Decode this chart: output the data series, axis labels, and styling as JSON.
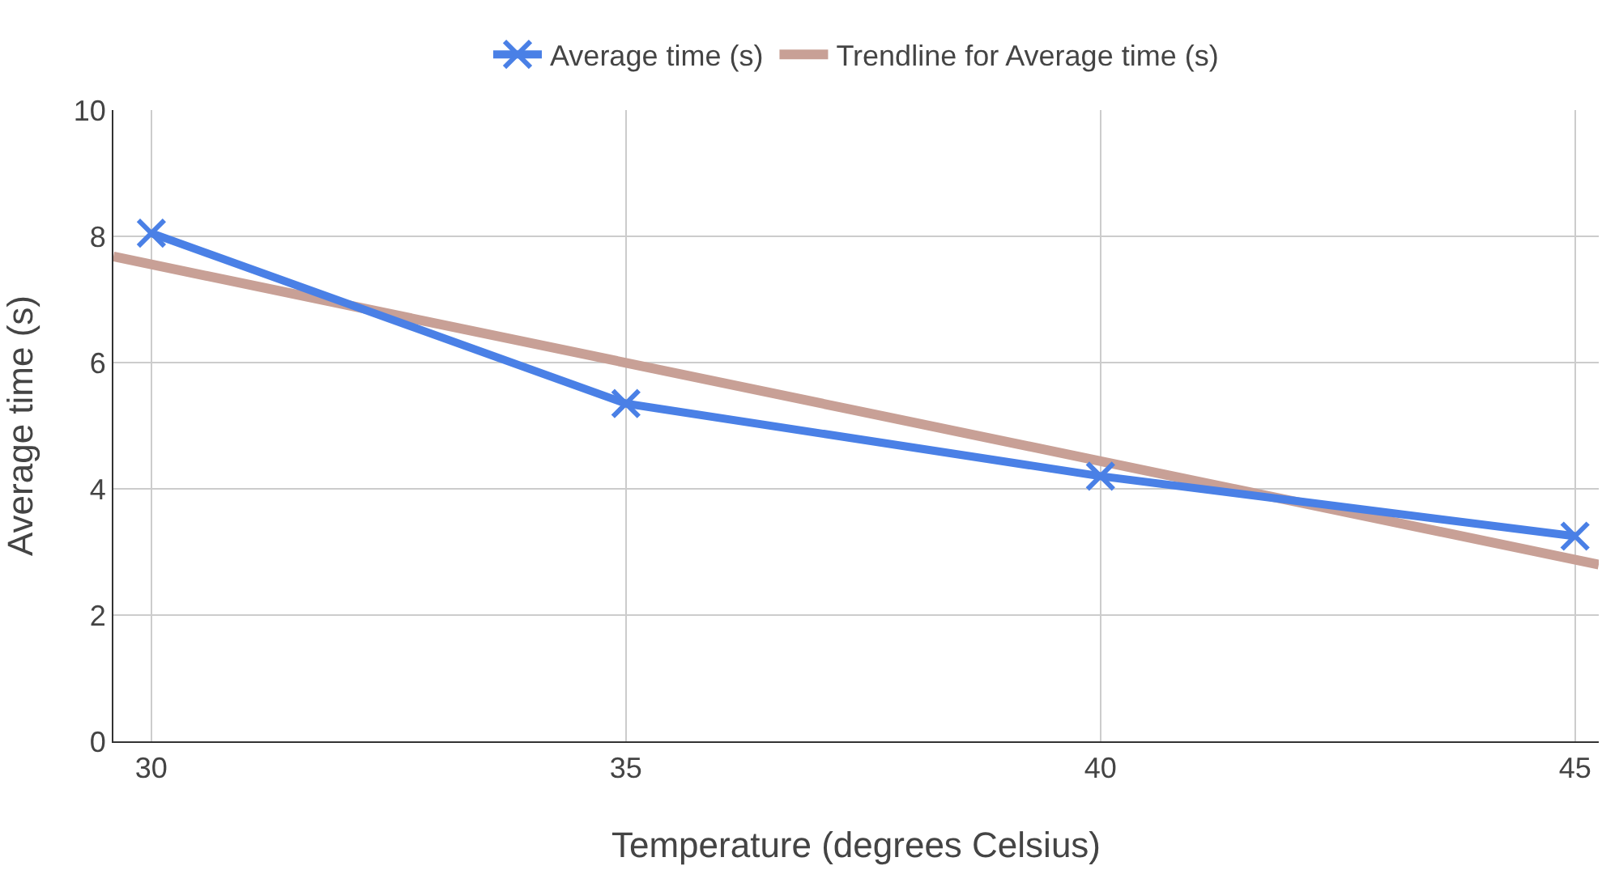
{
  "chart_data": {
    "type": "line",
    "xlabel": "Temperature (degrees Celsius)",
    "ylabel": "Average time (s)",
    "series": [
      {
        "name": "Average time (s)",
        "color": "#4a80e6",
        "x": [
          30,
          35,
          40,
          45
        ],
        "values": [
          8.05,
          5.35,
          4.2,
          3.25
        ],
        "marker": "cross"
      },
      {
        "name": "Trendline for Average time (s)",
        "color": "#c8a096",
        "x": [
          29.6,
          45.25
        ],
        "values": [
          7.68,
          2.8
        ],
        "marker": "none"
      }
    ],
    "xlim": [
      29.6,
      45.25
    ],
    "xticks": [
      30,
      35,
      40,
      45
    ],
    "ylim": [
      0,
      10
    ],
    "yticks": [
      0,
      2,
      4,
      6,
      8,
      10
    ],
    "grid": true,
    "legend": "top"
  }
}
